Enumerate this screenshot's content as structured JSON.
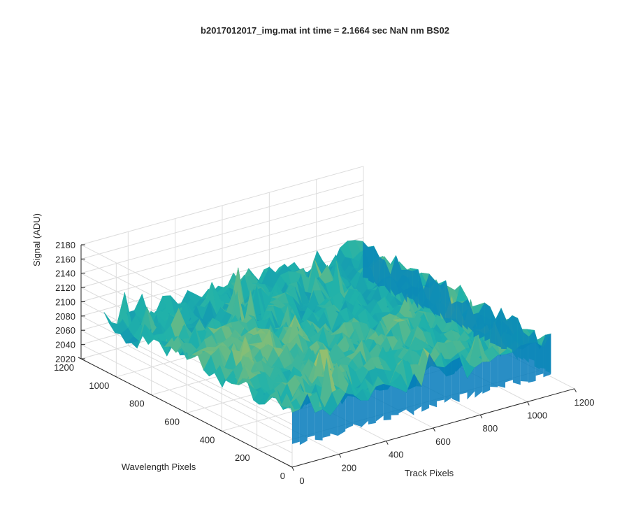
{
  "chart_data": {
    "type": "surface",
    "title": "b2017012017_img.mat int time = 2.1664 sec  NaN nm BS02",
    "xlabel": "Track Pixels",
    "ylabel": "Wavelength Pixels",
    "zlabel": "Signal (ADU)",
    "xlim": [
      0,
      1200
    ],
    "ylim": [
      0,
      1200
    ],
    "zlim": [
      2020,
      2180
    ],
    "x_ticks": [
      "0",
      "200",
      "400",
      "600",
      "800",
      "1000",
      "1200"
    ],
    "y_ticks": [
      "0",
      "200",
      "400",
      "600",
      "800",
      "1000",
      "1200"
    ],
    "z_ticks": [
      "2020",
      "2040",
      "2060",
      "2080",
      "2100",
      "2120",
      "2140",
      "2160",
      "2180"
    ],
    "x_extent": [
      0,
      1100
    ],
    "y_extent": [
      0,
      1070
    ],
    "surface_mean": 2090,
    "surface_range": [
      2035,
      2165
    ],
    "grid": true,
    "colormap": "parula",
    "colors": {
      "low": "#0072BD",
      "mid": "#20B2AA",
      "high": "#E8C943"
    }
  }
}
